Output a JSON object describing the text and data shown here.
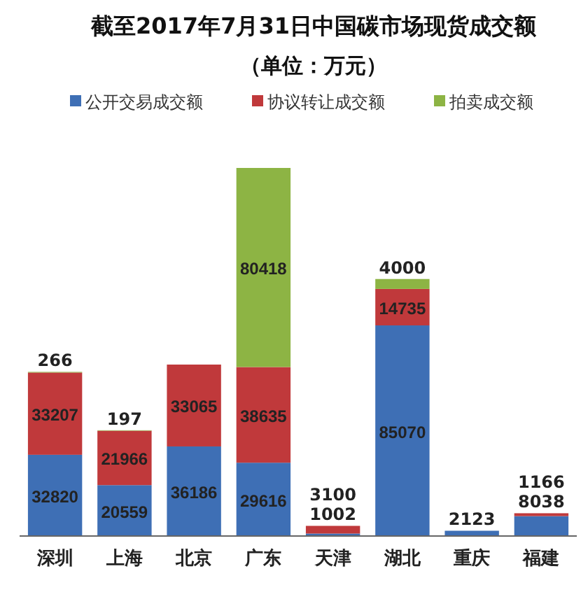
{
  "chart_data": {
    "type": "bar",
    "stacked": true,
    "data_labels": true,
    "legend": "top",
    "title": "截至2017年7月31日中国碳市场现货成交额",
    "subtitle": "（单位：万元）",
    "categories": [
      "深圳",
      "上海",
      "北京",
      "广东",
      "天津",
      "湖北",
      "重庆",
      "福建"
    ],
    "series": [
      {
        "name": "公开交易成交额",
        "color": "#3e6fb5",
        "values": [
          32820,
          20559,
          36186,
          29616,
          1002,
          85070,
          2123,
          8038
        ]
      },
      {
        "name": "协议转让成交额",
        "color": "#c0393b",
        "values": [
          33207,
          21966,
          33065,
          38635,
          3100,
          14735,
          null,
          1166
        ]
      },
      {
        "name": "拍卖成交额",
        "color": "#8db444",
        "values": [
          266,
          197,
          null,
          80418,
          null,
          4000,
          null,
          null
        ]
      }
    ]
  }
}
